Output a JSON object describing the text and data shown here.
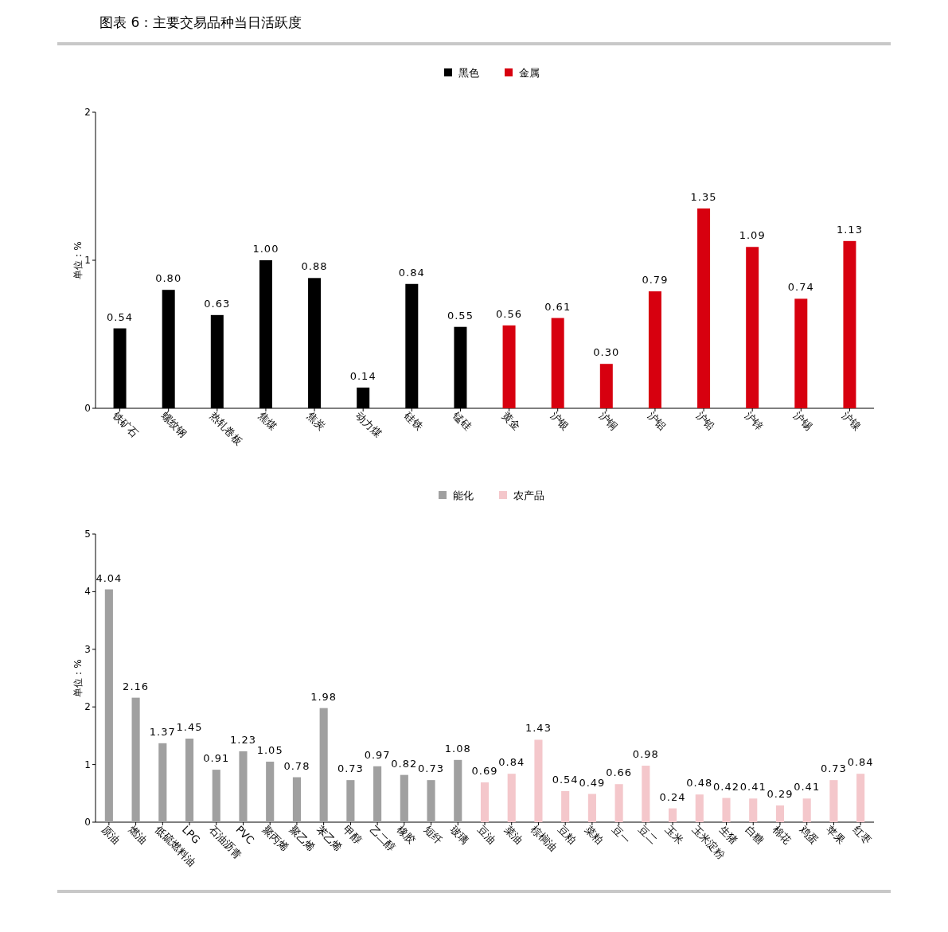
{
  "chart_data": [
    {
      "type": "bar",
      "title": "图表 6：主要交易品种当日活跃度",
      "ylabel": "单位：%",
      "legend": "top",
      "grid": false,
      "ylim": [
        0,
        2
      ],
      "yticks": [
        0,
        1,
        2
      ],
      "categories": [
        "铁矿石",
        "螺纹钢",
        "热轧卷板",
        "焦煤",
        "焦炭",
        "动力煤",
        "硅铁",
        "锰硅",
        "黄金",
        "沪银",
        "沪铜",
        "沪铝",
        "沪铅",
        "沪锌",
        "沪锡",
        "沪镍"
      ],
      "series": [
        {
          "name": "黑色",
          "color": "#000000",
          "values": [
            0.54,
            0.8,
            0.63,
            1.0,
            0.88,
            0.14,
            0.84,
            0.55,
            null,
            null,
            null,
            null,
            null,
            null,
            null,
            null
          ],
          "value_labels": [
            "0.54",
            "0.80",
            "0.63",
            "1.00",
            "0.88",
            "0.14",
            "0.84",
            "0.55",
            null,
            null,
            null,
            null,
            null,
            null,
            null,
            null
          ]
        },
        {
          "name": "金属",
          "color": "#d7000f",
          "values": [
            null,
            null,
            null,
            null,
            null,
            null,
            null,
            null,
            0.56,
            0.61,
            0.3,
            0.79,
            1.35,
            1.09,
            0.74,
            1.13
          ],
          "value_labels": [
            null,
            null,
            null,
            null,
            null,
            null,
            null,
            null,
            "0.56",
            "0.61",
            "0.30",
            "0.79",
            "1.35",
            "1.09",
            "0.74",
            "1.13"
          ]
        }
      ]
    },
    {
      "type": "bar",
      "ylabel": "单位：%",
      "legend": "top",
      "grid": false,
      "ylim": [
        0,
        5
      ],
      "yticks": [
        0,
        1,
        2,
        3,
        4,
        5
      ],
      "categories": [
        "原油",
        "燃油",
        "低硫燃料油",
        "LPG",
        "石油沥青",
        "PVC",
        "聚丙烯",
        "聚乙烯",
        "苯乙烯",
        "甲醇",
        "乙二醇",
        "橡胶",
        "短纤",
        "玻璃",
        "豆油",
        "菜油",
        "棕榈油",
        "豆粕",
        "菜粕",
        "豆一",
        "豆二",
        "玉米",
        "玉米淀粉",
        "生猪",
        "白糖",
        "棉花",
        "鸡蛋",
        "苹果",
        "红枣"
      ],
      "series": [
        {
          "name": "能化",
          "color": "#a0a0a0",
          "values": [
            4.04,
            2.16,
            1.37,
            1.45,
            0.91,
            1.23,
            1.05,
            0.78,
            1.98,
            0.73,
            0.97,
            0.82,
            0.73,
            1.08,
            null,
            null,
            null,
            null,
            null,
            null,
            null,
            null,
            null,
            null,
            null,
            null,
            null,
            null,
            null
          ],
          "value_labels": [
            "4.04",
            "2.16",
            "1.37",
            "1.45",
            "0.91",
            "1.23",
            "1.05",
            "0.78",
            "1.98",
            "0.73",
            "0.97",
            "0.82",
            "0.73",
            "1.08",
            null,
            null,
            null,
            null,
            null,
            null,
            null,
            null,
            null,
            null,
            null,
            null,
            null,
            null,
            null
          ]
        },
        {
          "name": "农产品",
          "color": "#f4c7cb",
          "values": [
            null,
            null,
            null,
            null,
            null,
            null,
            null,
            null,
            null,
            null,
            null,
            null,
            null,
            null,
            0.69,
            0.84,
            1.43,
            0.54,
            0.49,
            0.66,
            0.98,
            0.24,
            0.48,
            0.42,
            0.41,
            0.29,
            0.41,
            0.73,
            0.84
          ],
          "value_labels": [
            null,
            null,
            null,
            null,
            null,
            null,
            null,
            null,
            null,
            null,
            null,
            null,
            null,
            null,
            "0.69",
            "0.84",
            "1.43",
            "0.54",
            "0.49",
            "0.66",
            "0.98",
            "0.24",
            "0.48",
            "0.42",
            "0.41",
            "0.29",
            "0.41",
            "0.73",
            "0.84"
          ]
        }
      ]
    }
  ]
}
